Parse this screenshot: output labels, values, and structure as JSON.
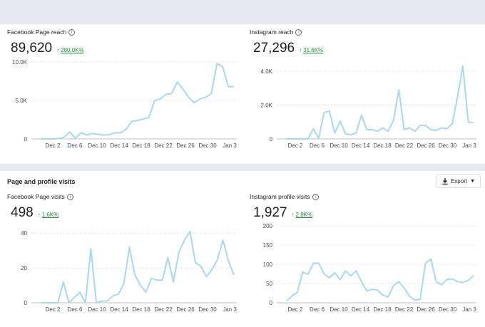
{
  "top_section": {
    "facebook_reach": {
      "title": "Facebook Page reach",
      "value": "89,620",
      "change": "280.0K%"
    },
    "instagram_reach": {
      "title": "Instagram reach",
      "value": "27,296",
      "change": "31.6K%"
    }
  },
  "bottom_section": {
    "title": "Page and profile visits",
    "export_label": "Export",
    "facebook_visits": {
      "title": "Facebook Page visits",
      "value": "498",
      "change": "1.6K%"
    },
    "instagram_visits": {
      "title": "Instagram profile visits",
      "value": "1,927",
      "change": "2.8K%"
    }
  },
  "colors": {
    "line": "#a8d8f0",
    "grid": "#dddfe2",
    "trend": "#1e8e3e",
    "page_bg": "#e6e9f2"
  },
  "chart_data": [
    {
      "id": "facebook-reach",
      "type": "line",
      "x_ticks": [
        "Dec 2",
        "Dec 6",
        "Dec 10",
        "Dec 14",
        "Dec 18",
        "Dec 22",
        "Dec 26",
        "Dec 30",
        "Jan 3"
      ],
      "y_ticks": [
        "0",
        "5.0K",
        "10.0K"
      ],
      "ylim": [
        0,
        10000
      ],
      "grid": true,
      "values": [
        0,
        0,
        0,
        50,
        200,
        900,
        100,
        800,
        500,
        700,
        600,
        500,
        550,
        800,
        800,
        1300,
        2300,
        2400,
        2600,
        2800,
        5000,
        5200,
        5800,
        5900,
        7400,
        6500,
        5400,
        4700,
        5200,
        5400,
        5900,
        9800,
        9400,
        6800,
        6800
      ]
    },
    {
      "id": "instagram-reach",
      "type": "line",
      "x_ticks": [
        "Dec 2",
        "Dec 6",
        "Dec 10",
        "Dec 14",
        "Dec 18",
        "Dec 22",
        "Dec 26",
        "Dec 30",
        "Jan 3"
      ],
      "y_ticks": [
        "0",
        "2.0K",
        "4.0K"
      ],
      "ylim": [
        0,
        4500
      ],
      "grid": true,
      "values": [
        0,
        0,
        0,
        0,
        0,
        600,
        30,
        1550,
        1650,
        350,
        1050,
        300,
        250,
        350,
        1400,
        550,
        550,
        450,
        650,
        450,
        1100,
        2900,
        550,
        650,
        450,
        800,
        800,
        550,
        500,
        650,
        600,
        900,
        2500,
        4300,
        1000,
        950
      ]
    },
    {
      "id": "facebook-visits",
      "type": "line",
      "x_ticks": [
        "Dec 2",
        "Dec 6",
        "Dec 10",
        "Dec 14",
        "Dec 18",
        "Dec 22",
        "Dec 26",
        "Dec 30",
        "Jan 3"
      ],
      "y_ticks": [
        "0",
        "20",
        "40"
      ],
      "ylim": [
        0,
        45
      ],
      "grid": true,
      "values": [
        0,
        0,
        0,
        0,
        12,
        0,
        3,
        6,
        0,
        31,
        0,
        1,
        1,
        4,
        5,
        11,
        32,
        16,
        10,
        6,
        14,
        13,
        13,
        26,
        12,
        29,
        36,
        41,
        23,
        21,
        15,
        19,
        25,
        36,
        24,
        16
      ]
    },
    {
      "id": "instagram-visits",
      "type": "line",
      "x_ticks": [
        "Dec 2",
        "Dec 6",
        "Dec 10",
        "Dec 14",
        "Dec 18",
        "Dec 22",
        "Dec 26",
        "Dec 30",
        "Jan 3"
      ],
      "y_ticks": [
        "0",
        "50",
        "100",
        "150",
        "200"
      ],
      "ylim": [
        0,
        200
      ],
      "grid": true,
      "values": [
        5,
        18,
        28,
        80,
        74,
        103,
        103,
        75,
        65,
        78,
        60,
        83,
        70,
        83,
        55,
        31,
        35,
        33,
        20,
        15,
        45,
        55,
        38,
        17,
        7,
        9,
        103,
        114,
        55,
        47,
        61,
        62,
        55,
        53,
        58,
        71
      ]
    }
  ]
}
